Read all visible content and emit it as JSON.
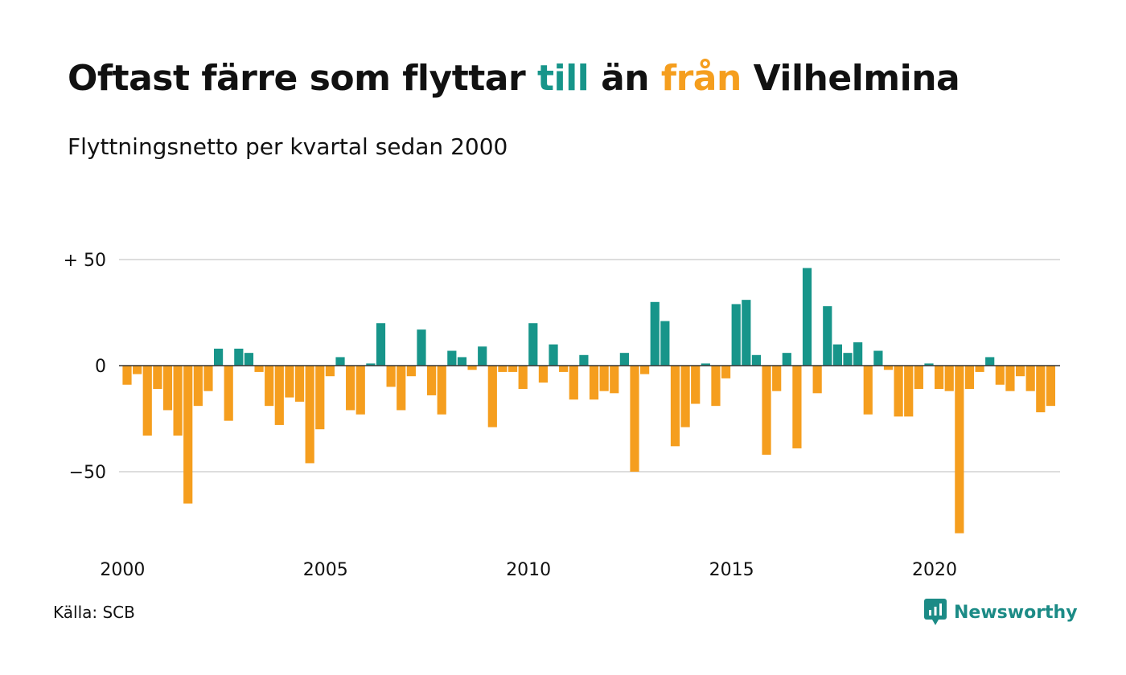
{
  "header": {
    "title_parts": [
      "Oftast färre som flyttar ",
      "till",
      " än ",
      "från",
      " Vilhelmina"
    ],
    "subtitle": "Flyttningsnetto per kvartal sedan 2000"
  },
  "footer": {
    "source": "Källa: SCB",
    "brand": "Newsworthy"
  },
  "colors": {
    "positive": "#17958a",
    "negative": "#f59e1e",
    "grid": "#dddddd",
    "title": "#111111",
    "brand": "#1c8b86"
  },
  "chart_data": {
    "type": "bar",
    "title": "Oftast färre som flyttar till än från Vilhelmina",
    "subtitle": "Flyttningsnetto per kvartal sedan 2000",
    "x_start_year": 2000,
    "periods_per_year": 4,
    "x_ticks": [
      {
        "year": 2000,
        "label": "2000"
      },
      {
        "year": 2005,
        "label": "2005"
      },
      {
        "year": 2010,
        "label": "2010"
      },
      {
        "year": 2015,
        "label": "2015"
      },
      {
        "year": 2020,
        "label": "2020"
      }
    ],
    "y_ticks": [
      {
        "value": 50,
        "label": "+ 50"
      },
      {
        "value": 0,
        "label": "0"
      },
      {
        "value": -50,
        "label": "−50"
      }
    ],
    "ylim": [
      -85,
      55
    ],
    "grid": true,
    "values": [
      -9,
      -4,
      -33,
      -11,
      -21,
      -33,
      -65,
      -19,
      -12,
      8,
      -26,
      8,
      6,
      -3,
      -19,
      -28,
      -15,
      -17,
      -46,
      -30,
      -5,
      4,
      -21,
      -23,
      1,
      20,
      -10,
      -21,
      -5,
      17,
      -14,
      -23,
      7,
      4,
      -2,
      9,
      -29,
      -3,
      -3,
      -11,
      20,
      -8,
      10,
      -3,
      -16,
      5,
      -16,
      -12,
      -13,
      6,
      -50,
      -4,
      30,
      21,
      -38,
      -29,
      -18,
      1,
      -19,
      -6,
      29,
      31,
      5,
      -42,
      -12,
      6,
      -39,
      46,
      -13,
      28,
      10,
      6,
      11,
      -23,
      7,
      -2,
      -24,
      -24,
      -11,
      1,
      -11,
      -12,
      -79,
      -11,
      -3,
      4,
      -9,
      -12,
      -5,
      -12,
      -22,
      -19
    ]
  }
}
